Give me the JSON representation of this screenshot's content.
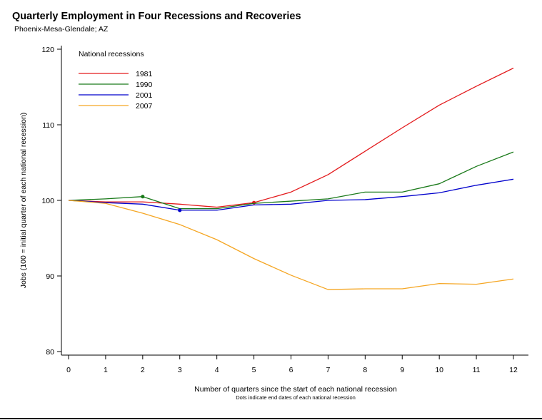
{
  "chart_data": {
    "type": "line",
    "title": "Quarterly Employment in Four Recessions and Recoveries",
    "subtitle": "Phoenix-Mesa-Glendale; AZ",
    "xlabel": "Number of quarters since the start of each national recession",
    "note": "Dots indicate end dates of each national recession",
    "ylabel": "Jobs (100 = initial quarter of each national recession)",
    "x": [
      0,
      1,
      2,
      3,
      4,
      5,
      6,
      7,
      8,
      9,
      10,
      11,
      12
    ],
    "xlim": [
      0,
      12
    ],
    "ylim": [
      80,
      120
    ],
    "yticks": [
      80,
      90,
      100,
      110,
      120
    ],
    "grid": false,
    "legend": {
      "title": "National recessions",
      "position": "top-left"
    },
    "series": [
      {
        "name": "1981",
        "color": "#e31a1c",
        "values": [
          100,
          99.8,
          99.8,
          99.5,
          99.1,
          99.7,
          101.1,
          103.4,
          106.5,
          109.6,
          112.6,
          115.1,
          117.5
        ],
        "end_marker": 5
      },
      {
        "name": "1990",
        "color": "#1a7a1a",
        "values": [
          100,
          100.2,
          100.5,
          98.9,
          98.9,
          99.6,
          99.9,
          100.2,
          101.1,
          101.1,
          102.2,
          104.5,
          106.4
        ],
        "end_marker": 2
      },
      {
        "name": "2001",
        "color": "#0000cc",
        "values": [
          100,
          99.7,
          99.5,
          98.7,
          98.7,
          99.4,
          99.5,
          100.0,
          100.1,
          100.5,
          101.0,
          102.0,
          102.8
        ],
        "end_marker": 3
      },
      {
        "name": "2007",
        "color": "#f5a623",
        "values": [
          100,
          99.6,
          98.3,
          96.8,
          94.8,
          92.3,
          90.1,
          88.2,
          88.3,
          88.3,
          89.0,
          88.9,
          89.6
        ],
        "end_marker": null
      }
    ]
  }
}
